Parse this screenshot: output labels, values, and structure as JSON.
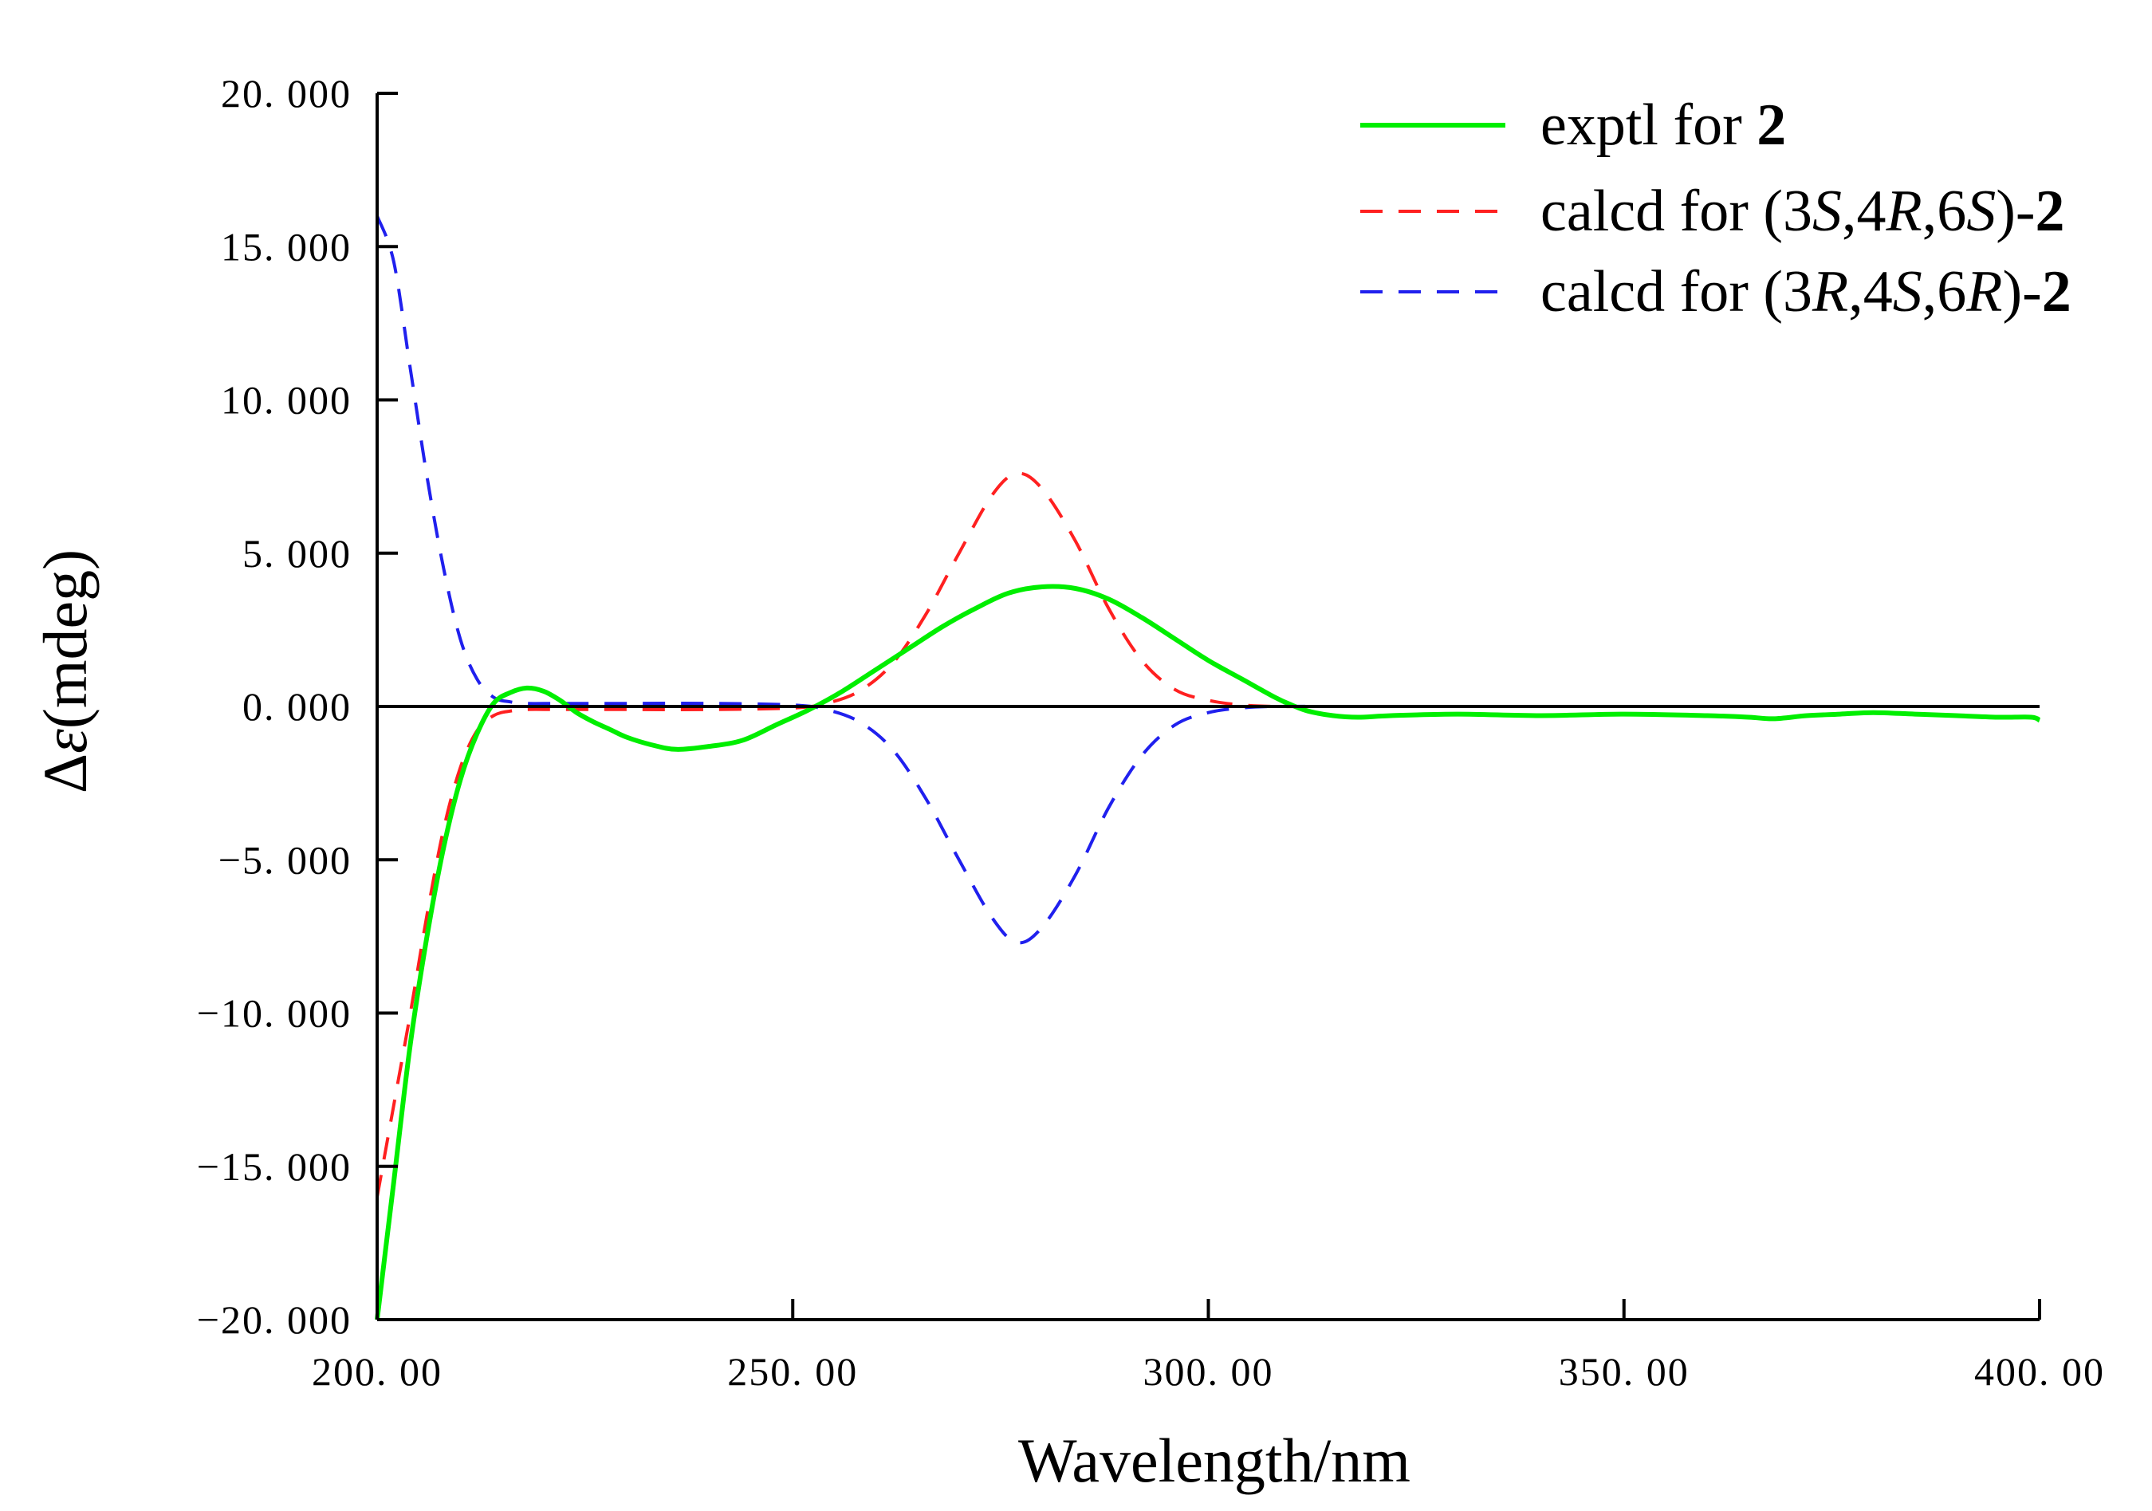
{
  "chart_data": {
    "type": "line",
    "title": "",
    "xlabel": "Wavelength/nm",
    "ylabel": "Δε(mdeg)",
    "xlim": [
      200,
      400
    ],
    "ylim": [
      -20,
      20
    ],
    "x_ticks": [
      "200. 00",
      "250. 00",
      "300. 00",
      "350. 00",
      "400. 00"
    ],
    "y_ticks": [
      "20. 000",
      "15. 000",
      "10. 000",
      "5. 000",
      "0. 000",
      "−5. 000",
      "−10. 000",
      "−15. 000",
      "−20. 000"
    ],
    "grid": false,
    "legend_position": "top-right",
    "zero_line": true,
    "series": [
      {
        "name": "exptl for 2",
        "legend": {
          "prefix": "exptl for ",
          "italic": [],
          "bold": "2",
          "parts": [
            {
              "t": "exptl for ",
              "s": "normal"
            },
            {
              "t": "2",
              "s": "bold"
            }
          ]
        },
        "color": "#00ee00",
        "dash": "solid",
        "x": [
          200,
          202,
          204,
          206,
          208,
          210,
          212,
          214,
          216,
          218,
          220,
          222,
          224,
          226,
          228,
          230,
          233,
          236,
          240,
          244,
          248,
          252,
          256,
          260,
          264,
          268,
          272,
          276,
          280,
          284,
          288,
          292,
          296,
          300,
          304,
          308,
          310,
          312,
          315,
          318,
          322,
          330,
          340,
          350,
          360,
          365,
          368,
          372,
          376,
          380,
          385,
          390,
          395,
          399,
          400
        ],
        "y": [
          -20,
          -15.5,
          -11,
          -7.5,
          -4.6,
          -2.4,
          -0.9,
          0.1,
          0.45,
          0.6,
          0.5,
          0.2,
          -0.2,
          -0.5,
          -0.75,
          -1,
          -1.25,
          -1.4,
          -1.3,
          -1.1,
          -0.6,
          -0.1,
          0.5,
          1.2,
          1.9,
          2.6,
          3.2,
          3.7,
          3.9,
          3.85,
          3.5,
          2.9,
          2.2,
          1.5,
          0.9,
          0.3,
          0.05,
          -0.15,
          -0.3,
          -0.35,
          -0.3,
          -0.25,
          -0.3,
          -0.25,
          -0.3,
          -0.35,
          -0.4,
          -0.3,
          -0.25,
          -0.2,
          -0.25,
          -0.3,
          -0.35,
          -0.35,
          -0.45
        ]
      },
      {
        "name": "calcd for (3S,4R,6S)-2",
        "legend": {
          "parts": [
            {
              "t": "calcd for (3",
              "s": "normal"
            },
            {
              "t": "S",
              "s": "italic"
            },
            {
              "t": ",4",
              "s": "normal"
            },
            {
              "t": "R",
              "s": "italic"
            },
            {
              "t": ",6",
              "s": "normal"
            },
            {
              "t": "S",
              "s": "italic"
            },
            {
              "t": ")-",
              "s": "normal"
            },
            {
              "t": "2",
              "s": "bold"
            }
          ]
        },
        "color": "#ff2020",
        "dash": "dashed",
        "x": [
          200,
          202,
          204,
          206,
          208,
          210,
          212,
          214,
          216,
          218,
          222,
          230,
          240,
          250,
          254,
          258,
          262,
          266,
          270,
          274,
          277,
          280,
          284,
          288,
          292,
          296,
          300,
          304,
          308,
          315,
          330,
          360,
          400
        ],
        "y": [
          -16,
          -13,
          -10,
          -6.8,
          -4,
          -2,
          -0.8,
          -0.3,
          -0.15,
          -0.1,
          -0.1,
          -0.1,
          -0.1,
          -0.05,
          0.1,
          0.5,
          1.4,
          3,
          5,
          6.9,
          7.6,
          7.1,
          5.4,
          3.2,
          1.5,
          0.55,
          0.2,
          0.05,
          0,
          0,
          0,
          0,
          0
        ]
      },
      {
        "name": "calcd for (3R,4S,6R)-2",
        "legend": {
          "parts": [
            {
              "t": "calcd for (3",
              "s": "normal"
            },
            {
              "t": "R",
              "s": "italic"
            },
            {
              "t": ",4",
              "s": "normal"
            },
            {
              "t": "S",
              "s": "italic"
            },
            {
              "t": ",6",
              "s": "normal"
            },
            {
              "t": "R",
              "s": "italic"
            },
            {
              "t": ")-",
              "s": "normal"
            },
            {
              "t": "2",
              "s": "bold"
            }
          ]
        },
        "color": "#2020ee",
        "dash": "dashed",
        "x": [
          200,
          202,
          204,
          206,
          208,
          210,
          212,
          214,
          216,
          218,
          222,
          230,
          240,
          250,
          254,
          258,
          262,
          266,
          270,
          274,
          277,
          280,
          284,
          288,
          292,
          296,
          300,
          304,
          308,
          315,
          330,
          360,
          400
        ],
        "y": [
          16,
          14.5,
          11,
          7.5,
          4.5,
          2.2,
          0.9,
          0.3,
          0.15,
          0.1,
          0.1,
          0.1,
          0.1,
          0.05,
          -0.1,
          -0.5,
          -1.4,
          -3,
          -5,
          -6.9,
          -7.7,
          -7.2,
          -5.5,
          -3.3,
          -1.6,
          -0.6,
          -0.2,
          -0.05,
          0,
          0,
          0,
          0,
          0
        ]
      }
    ]
  }
}
